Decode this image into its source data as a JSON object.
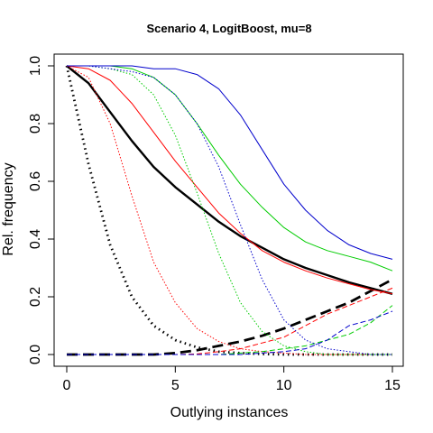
{
  "chart_data": {
    "type": "line",
    "title": "Scenario 4, LogitBoost, mu=8",
    "xlabel": "Outlying instances",
    "ylabel": "Rel. frequency",
    "xlim": [
      0,
      15
    ],
    "ylim": [
      0,
      1
    ],
    "xticks": [
      "0",
      "5",
      "10",
      "15"
    ],
    "yticks": [
      "0.0",
      "0.2",
      "0.4",
      "0.6",
      "0.8",
      "1.0"
    ],
    "grid": false,
    "legend": "none",
    "x": [
      0,
      1,
      2,
      3,
      4,
      5,
      6,
      7,
      8,
      9,
      10,
      11,
      12,
      13,
      14,
      15
    ],
    "series": [
      {
        "color": "#000000",
        "style": "solid",
        "width": 2.4,
        "values": [
          1.0,
          0.94,
          0.84,
          0.74,
          0.65,
          0.58,
          0.52,
          0.46,
          0.41,
          0.37,
          0.33,
          0.3,
          0.275,
          0.25,
          0.23,
          0.21
        ]
      },
      {
        "color": "#000000",
        "style": "dotted",
        "width": 2.8,
        "values": [
          1.0,
          0.66,
          0.38,
          0.2,
          0.1,
          0.05,
          0.025,
          0.01,
          0.005,
          0.002,
          0.0,
          0.0,
          0.0,
          0.0,
          0.0,
          0.0
        ]
      },
      {
        "color": "#000000",
        "style": "dashed",
        "width": 2.8,
        "values": [
          0.0,
          0.0,
          0.0,
          0.0,
          0.0,
          0.005,
          0.015,
          0.03,
          0.045,
          0.065,
          0.09,
          0.12,
          0.15,
          0.18,
          0.22,
          0.26
        ]
      },
      {
        "color": "#ff0000",
        "style": "solid",
        "width": 1,
        "values": [
          1.0,
          0.99,
          0.95,
          0.87,
          0.77,
          0.67,
          0.58,
          0.49,
          0.42,
          0.36,
          0.32,
          0.29,
          0.265,
          0.245,
          0.225,
          0.21
        ]
      },
      {
        "color": "#ff0000",
        "style": "dotted",
        "width": 1,
        "values": [
          1.0,
          0.96,
          0.8,
          0.55,
          0.32,
          0.18,
          0.09,
          0.045,
          0.02,
          0.01,
          0.005,
          0.0,
          0.0,
          0.0,
          0.0,
          0.0
        ]
      },
      {
        "color": "#ff0000",
        "style": "dashed",
        "width": 1,
        "values": [
          0.0,
          0.0,
          0.0,
          0.0,
          0.0,
          0.0,
          0.002,
          0.01,
          0.02,
          0.04,
          0.06,
          0.1,
          0.14,
          0.17,
          0.2,
          0.23
        ]
      },
      {
        "color": "#00cc00",
        "style": "solid",
        "width": 1,
        "values": [
          1.0,
          1.0,
          1.0,
          0.99,
          0.96,
          0.9,
          0.8,
          0.69,
          0.59,
          0.51,
          0.44,
          0.39,
          0.36,
          0.34,
          0.32,
          0.29
        ]
      },
      {
        "color": "#00cc00",
        "style": "dotted",
        "width": 1,
        "values": [
          1.0,
          1.0,
          0.99,
          0.97,
          0.9,
          0.76,
          0.56,
          0.35,
          0.18,
          0.08,
          0.03,
          0.01,
          0.0,
          0.0,
          0.0,
          0.0
        ]
      },
      {
        "color": "#00cc00",
        "style": "dashed",
        "width": 1,
        "values": [
          0.0,
          0.0,
          0.0,
          0.0,
          0.0,
          0.0,
          0.0,
          0.0,
          0.005,
          0.01,
          0.02,
          0.03,
          0.05,
          0.07,
          0.11,
          0.17
        ]
      },
      {
        "color": "#0000cc",
        "style": "solid",
        "width": 1,
        "values": [
          1.0,
          1.0,
          1.0,
          1.0,
          0.99,
          0.99,
          0.97,
          0.92,
          0.83,
          0.71,
          0.59,
          0.5,
          0.43,
          0.38,
          0.35,
          0.33
        ]
      },
      {
        "color": "#0000cc",
        "style": "dotted",
        "width": 1,
        "values": [
          1.0,
          1.0,
          0.99,
          0.98,
          0.96,
          0.9,
          0.8,
          0.65,
          0.45,
          0.26,
          0.12,
          0.05,
          0.02,
          0.01,
          0.0,
          0.0
        ]
      },
      {
        "color": "#0000cc",
        "style": "dashed",
        "width": 1,
        "values": [
          0.0,
          0.0,
          0.0,
          0.0,
          0.0,
          0.0,
          0.0,
          0.0,
          0.0,
          0.005,
          0.01,
          0.02,
          0.05,
          0.1,
          0.12,
          0.15
        ]
      }
    ]
  }
}
